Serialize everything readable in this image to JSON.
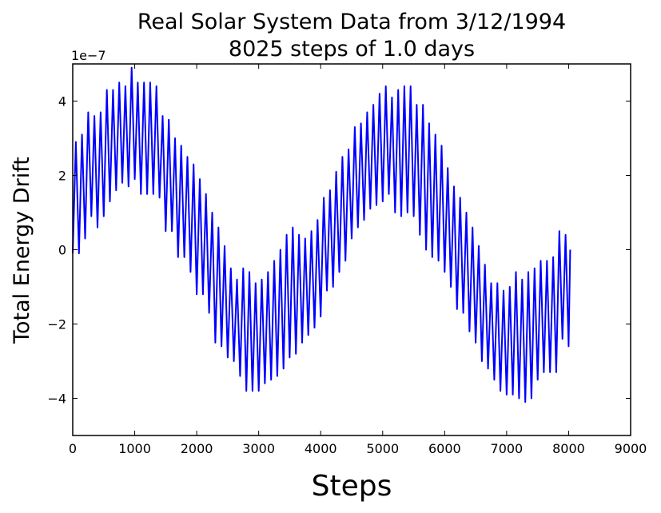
{
  "chart_data": {
    "type": "line",
    "title": "Real Solar System Data from 3/12/1994",
    "subtitle": "8025 steps of 1.0 days",
    "xlabel": "Steps",
    "ylabel": "Total Energy Drift",
    "y_offset_label": "1e−7",
    "xlim": [
      0,
      9000
    ],
    "ylim": [
      -5,
      5
    ],
    "x_ticks": [
      0,
      1000,
      2000,
      3000,
      4000,
      5000,
      6000,
      7000,
      8000,
      9000
    ],
    "y_ticks": [
      -4,
      -2,
      0,
      2,
      4
    ],
    "x_tick_labels": [
      "0",
      "1000",
      "2000",
      "3000",
      "4000",
      "5000",
      "6000",
      "7000",
      "8000",
      "9000"
    ],
    "y_tick_labels": [
      "−4",
      "−2",
      "0",
      "2",
      "4"
    ],
    "grid": false,
    "series": [
      {
        "color": "#0000ff",
        "x": [
          0,
          50,
          100,
          150,
          200,
          250,
          300,
          350,
          400,
          450,
          500,
          550,
          600,
          650,
          700,
          750,
          800,
          850,
          900,
          950,
          1000,
          1050,
          1100,
          1150,
          1200,
          1250,
          1300,
          1350,
          1400,
          1450,
          1500,
          1550,
          1600,
          1650,
          1700,
          1750,
          1800,
          1850,
          1900,
          1950,
          2000,
          2050,
          2100,
          2150,
          2200,
          2250,
          2300,
          2350,
          2400,
          2450,
          2500,
          2550,
          2600,
          2650,
          2700,
          2750,
          2800,
          2850,
          2900,
          2950,
          3000,
          3050,
          3100,
          3150,
          3200,
          3250,
          3300,
          3350,
          3400,
          3450,
          3500,
          3550,
          3600,
          3650,
          3700,
          3750,
          3800,
          3850,
          3900,
          3950,
          4000,
          4050,
          4100,
          4150,
          4200,
          4250,
          4300,
          4350,
          4400,
          4450,
          4500,
          4550,
          4600,
          4650,
          4700,
          4750,
          4800,
          4850,
          4900,
          4950,
          5000,
          5050,
          5100,
          5150,
          5200,
          5250,
          5300,
          5350,
          5400,
          5450,
          5500,
          5550,
          5600,
          5650,
          5700,
          5750,
          5800,
          5850,
          5900,
          5950,
          6000,
          6050,
          6100,
          6150,
          6200,
          6250,
          6300,
          6350,
          6400,
          6450,
          6500,
          6550,
          6600,
          6650,
          6700,
          6750,
          6800,
          6850,
          6900,
          6950,
          7000,
          7050,
          7100,
          7150,
          7200,
          7250,
          7300,
          7350,
          7400,
          7450,
          7500,
          7550,
          7600,
          7650,
          7700,
          7750,
          7800,
          7850,
          7900,
          7950,
          8000,
          8025
        ],
        "y": [
          -0.1,
          2.9,
          -0.1,
          3.1,
          0.3,
          3.7,
          0.9,
          3.6,
          0.6,
          3.7,
          0.9,
          4.3,
          1.3,
          4.3,
          1.6,
          4.5,
          1.8,
          4.4,
          1.7,
          4.9,
          1.9,
          4.5,
          1.5,
          4.5,
          1.5,
          4.5,
          1.5,
          4.4,
          1.4,
          3.6,
          0.5,
          3.5,
          0.5,
          3.0,
          -0.2,
          2.8,
          -0.2,
          2.5,
          -0.6,
          2.3,
          -1.2,
          1.9,
          -1.2,
          1.5,
          -1.7,
          1.0,
          -2.5,
          0.6,
          -2.6,
          0.1,
          -2.9,
          -0.5,
          -3.0,
          -0.8,
          -3.4,
          -0.5,
          -3.8,
          -0.6,
          -3.8,
          -0.9,
          -3.8,
          -0.8,
          -3.6,
          -0.6,
          -3.5,
          -0.3,
          -3.4,
          0.0,
          -3.2,
          0.4,
          -2.9,
          0.6,
          -2.8,
          0.4,
          -2.5,
          0.3,
          -2.3,
          0.5,
          -2.1,
          0.8,
          -1.8,
          1.4,
          -1.1,
          1.6,
          -1.0,
          2.1,
          -0.6,
          2.5,
          -0.3,
          2.7,
          0.3,
          3.3,
          0.6,
          3.4,
          0.8,
          3.7,
          1.1,
          3.9,
          1.2,
          4.2,
          1.3,
          4.4,
          1.5,
          4.1,
          1.0,
          4.3,
          0.9,
          4.4,
          1.0,
          4.4,
          0.9,
          3.9,
          0.4,
          3.9,
          0.0,
          3.4,
          -0.2,
          3.1,
          -0.3,
          2.8,
          -0.6,
          2.2,
          -1.0,
          1.7,
          -1.6,
          1.4,
          -1.7,
          1.0,
          -2.2,
          0.6,
          -2.5,
          0.1,
          -3.0,
          -0.4,
          -3.2,
          -0.9,
          -3.5,
          -0.9,
          -3.8,
          -1.1,
          -3.9,
          -1.0,
          -3.9,
          -0.6,
          -4.0,
          -0.8,
          -4.1,
          -0.6,
          -4.0,
          -0.5,
          -3.5,
          -0.3,
          -3.3,
          -0.3,
          -3.3,
          -0.2,
          -3.3,
          0.5,
          -2.4,
          0.4,
          -2.6,
          0.0
        ]
      }
    ]
  }
}
